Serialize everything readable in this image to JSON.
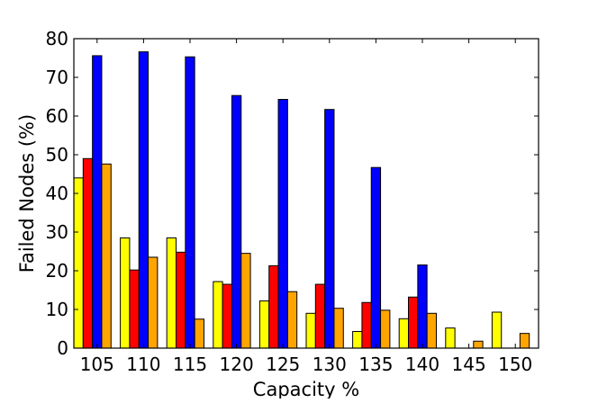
{
  "chart_data": {
    "type": "bar",
    "title": "",
    "xlabel": "Capacity %",
    "ylabel": "Failed Nodes (%)",
    "ylim": [
      0,
      80
    ],
    "yticks": [
      0,
      10,
      20,
      30,
      40,
      50,
      60,
      70,
      80
    ],
    "categories": [
      "105",
      "110",
      "115",
      "120",
      "125",
      "130",
      "135",
      "140",
      "145",
      "150"
    ],
    "grid": false,
    "legend": "none",
    "series": [
      {
        "color": "#ffff00",
        "values": [
          44,
          28.5,
          28.5,
          17.2,
          12.2,
          9,
          4.3,
          7.6,
          5.2,
          9.3
        ]
      },
      {
        "color": "#ff0000",
        "values": [
          49,
          20.2,
          24.8,
          16.5,
          21.3,
          16.5,
          11.8,
          13.2,
          0,
          0
        ]
      },
      {
        "color": "#0000ff",
        "values": [
          75.6,
          76.6,
          75.3,
          65.3,
          64.3,
          61.7,
          46.7,
          21.5,
          0,
          0
        ]
      },
      {
        "color": "#ffa500",
        "values": [
          47.6,
          23.5,
          7.5,
          24.5,
          14.6,
          10.3,
          9.8,
          9,
          1.8,
          3.8
        ]
      }
    ]
  }
}
